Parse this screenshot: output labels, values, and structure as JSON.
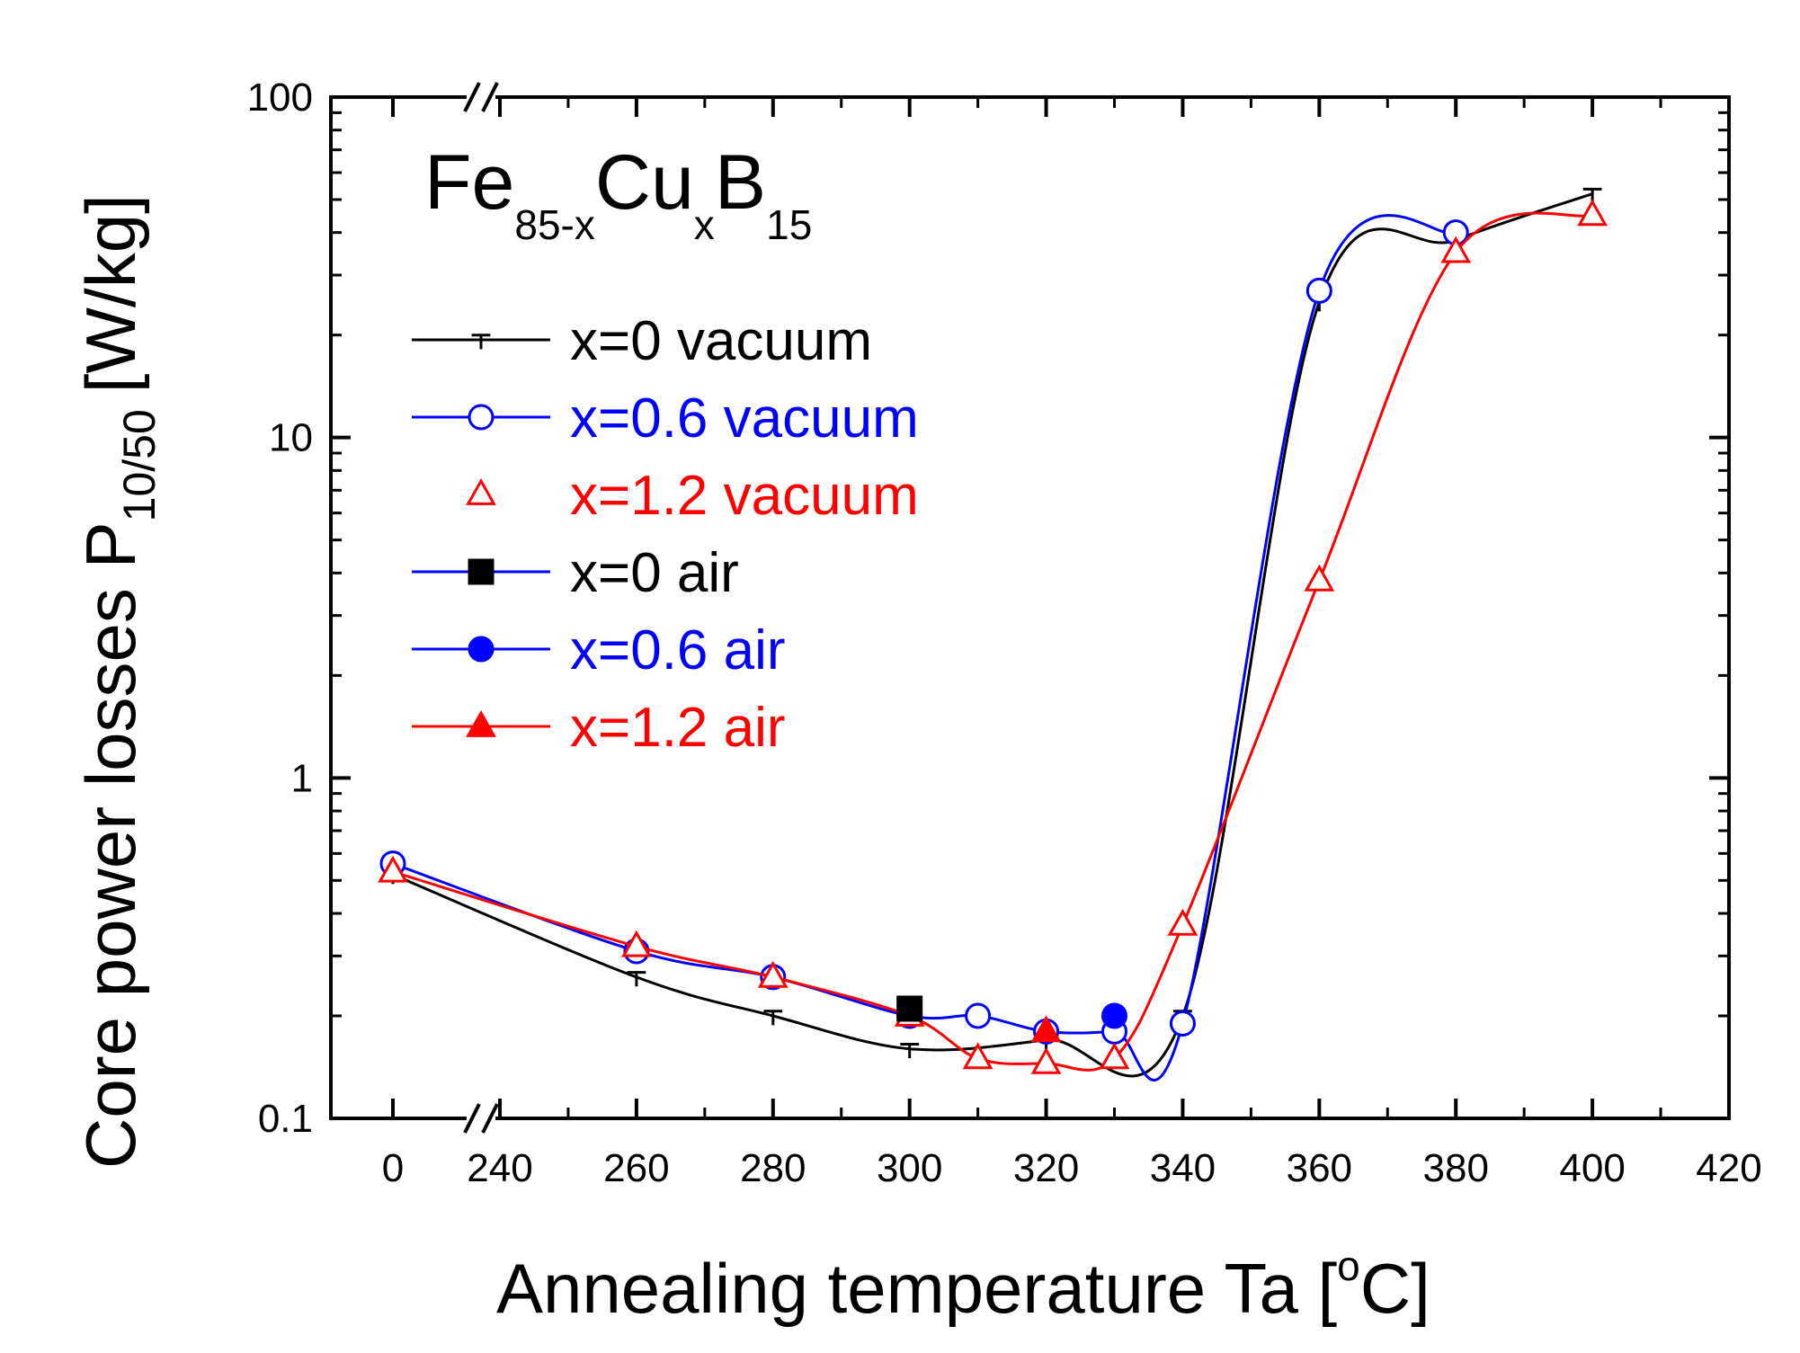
{
  "chart_data": {
    "type": "line",
    "yscale": "log",
    "title": "Fe85-xCuxB15",
    "formula": {
      "base1": "Fe",
      "sub1": "85-x",
      "base2": "Cu",
      "sub2": "x",
      "base3": "B",
      "sub3": "15"
    },
    "ylabel": {
      "main": "Core power losses P",
      "sub": "10/50",
      "unit": "[W/kg]"
    },
    "xlabel": {
      "main": "Annealing temperature Ta [",
      "sup": "o",
      "tail": "C]"
    },
    "ylim": [
      0.1,
      100
    ],
    "yticks": [
      {
        "value": 0.1,
        "label": "0.1"
      },
      {
        "value": 1,
        "label": "1"
      },
      {
        "value": 10,
        "label": "10"
      },
      {
        "value": 100,
        "label": "100"
      }
    ],
    "x_break": {
      "before": 0,
      "after": 240
    },
    "xlim": [
      230,
      420
    ],
    "xticks": [
      {
        "value": 0,
        "label": "0"
      },
      {
        "value": 240,
        "label": "240"
      },
      {
        "value": 260,
        "label": "260"
      },
      {
        "value": 280,
        "label": "280"
      },
      {
        "value": 300,
        "label": "300"
      },
      {
        "value": 320,
        "label": "320"
      },
      {
        "value": 340,
        "label": "340"
      },
      {
        "value": 360,
        "label": "360"
      },
      {
        "value": 380,
        "label": "380"
      },
      {
        "value": 400,
        "label": "400"
      },
      {
        "value": 420,
        "label": "420"
      }
    ],
    "legend_position": "top-left",
    "series": [
      {
        "name": "x=0 vacuum",
        "color": "#000000",
        "marker": "tick",
        "filled": false,
        "x": [
          0,
          260,
          280,
          300,
          320,
          340,
          360,
          380,
          400
        ],
        "y": [
          0.52,
          0.26,
          0.2,
          0.16,
          0.17,
          0.2,
          25,
          38,
          52
        ]
      },
      {
        "name": "x=0.6 vacuum",
        "color": "#0000ff",
        "marker": "circle",
        "filled": false,
        "x": [
          0,
          260,
          280,
          300,
          310,
          320,
          330,
          340,
          360,
          380
        ],
        "y": [
          0.56,
          0.31,
          0.26,
          0.2,
          0.2,
          0.18,
          0.18,
          0.19,
          27,
          40
        ]
      },
      {
        "name": "x=1.2 vacuum",
        "color": "#ff0000",
        "marker": "triangle",
        "filled": false,
        "x": [
          0,
          260,
          280,
          300,
          310,
          320,
          330,
          340,
          360,
          380,
          400
        ],
        "y": [
          0.53,
          0.32,
          0.26,
          0.2,
          0.15,
          0.145,
          0.15,
          0.37,
          3.8,
          35,
          45
        ]
      },
      {
        "name": "x=0 air",
        "color": "#000000",
        "line_color": "#0000ff",
        "marker": "square",
        "filled": true,
        "x": [
          300
        ],
        "y": [
          0.21
        ]
      },
      {
        "name": "x=0.6 air",
        "color": "#0000ff",
        "marker": "circle",
        "filled": true,
        "x": [
          330
        ],
        "y": [
          0.2
        ]
      },
      {
        "name": "x=1.2 air",
        "color": "#ff0000",
        "marker": "triangle",
        "filled": true,
        "x": [
          320
        ],
        "y": [
          0.18
        ]
      }
    ]
  }
}
